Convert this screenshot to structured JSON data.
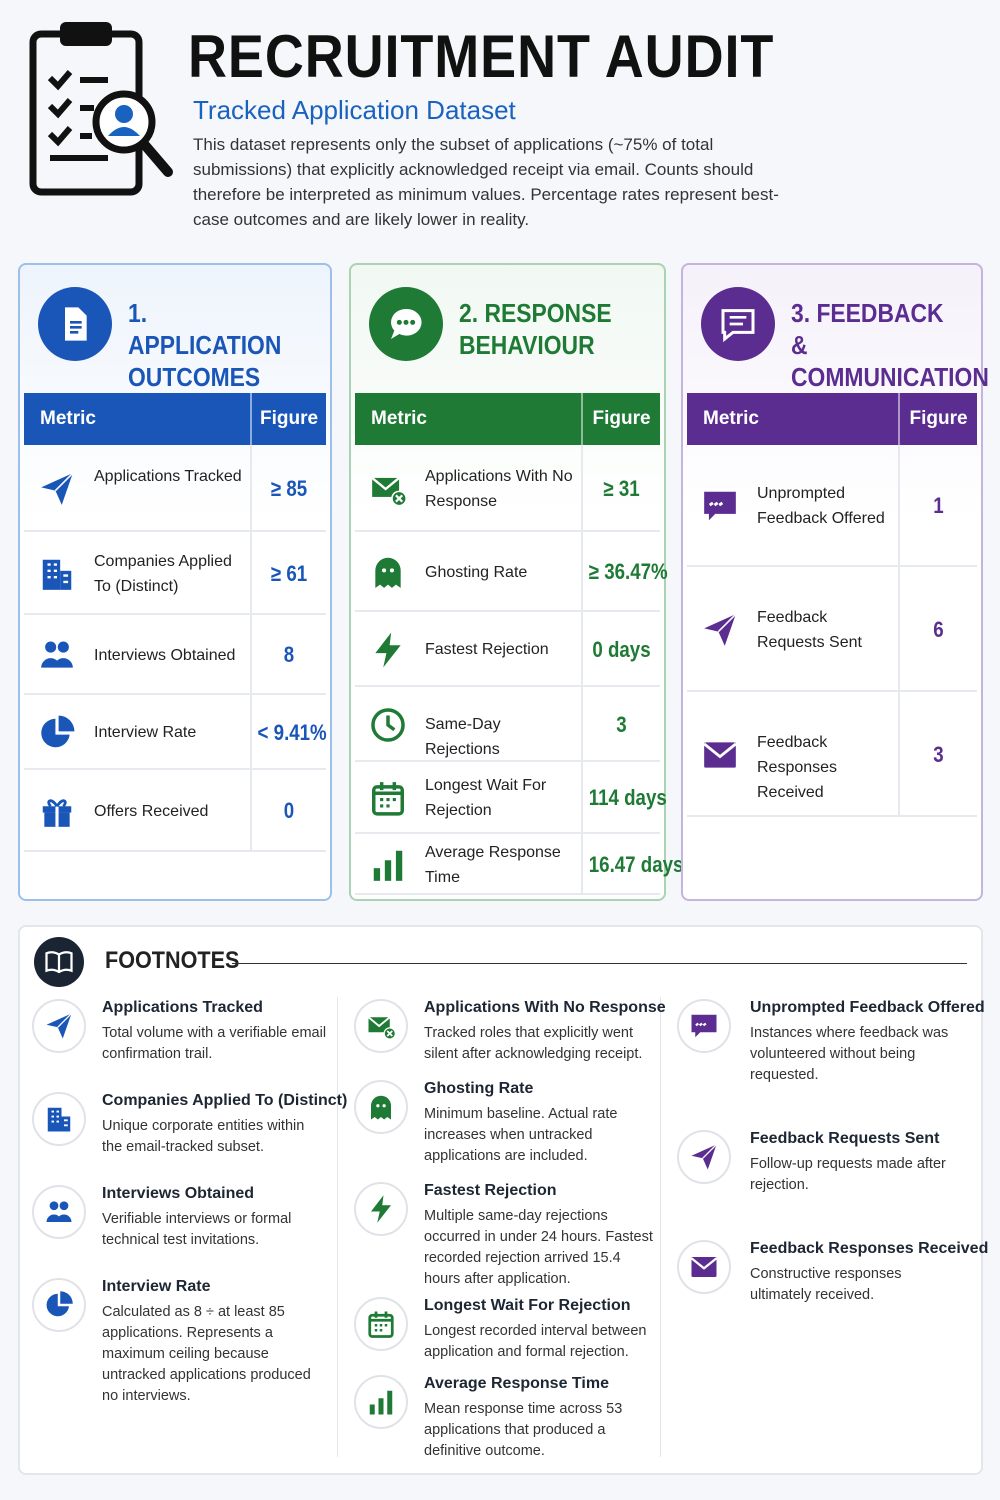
{
  "header": {
    "title": "RECRUITMENT AUDIT",
    "subtitle": "Tracked Application Dataset",
    "description": "This dataset represents only the subset of applications (~75% of total submissions) that explicitly acknowledged receipt via email. Counts should therefore be interpreted as minimum values. Percentage rates represent best-case outcomes and are likely lower in reality."
  },
  "panels": [
    {
      "title": "1. APPLICATION OUTCOMES",
      "columns": [
        "Metric",
        "Figure"
      ],
      "rows": [
        [
          "Applications Tracked",
          "≥ 85"
        ],
        [
          "Companies Applied To (Distinct)",
          "≥ 61"
        ],
        [
          "Interviews Obtained",
          "8"
        ],
        [
          "Interview Rate",
          "< 9.41%"
        ],
        [
          "Offers Received",
          "0"
        ]
      ]
    },
    {
      "title": "2. RESPONSE BEHAVIOUR",
      "columns": [
        "Metric",
        "Figure"
      ],
      "rows": [
        [
          "Applications With No Response",
          "≥ 31"
        ],
        [
          "Ghosting Rate",
          "≥ 36.47%"
        ],
        [
          "Fastest Rejection",
          "0 days"
        ],
        [
          "Same-Day Rejections",
          "3"
        ],
        [
          "Longest Wait For Rejection",
          "114 days"
        ],
        [
          "Average Response Time",
          "16.47 days"
        ]
      ]
    },
    {
      "title": "3. FEEDBACK & COMMUNICATION",
      "columns": [
        "Metric",
        "Figure"
      ],
      "rows": [
        [
          "Unprompted Feedback Offered",
          "1"
        ],
        [
          "Feedback Requests Sent",
          "6"
        ],
        [
          "Feedback Responses Received",
          "3"
        ]
      ]
    }
  ],
  "footnotes": {
    "title": "FOOTNOTES",
    "columns": [
      [
        {
          "title": "Applications Tracked",
          "text": "Total volume with a verifiable email confirmation trail."
        },
        {
          "title": "Companies Applied To (Distinct)",
          "text": "Unique corporate entities within the email-tracked subset."
        },
        {
          "title": "Interviews Obtained",
          "text": "Verifiable interviews or formal technical test invitations."
        },
        {
          "title": "Interview Rate",
          "text": "Calculated as 8 ÷ at least 85 applications. Represents a maximum ceiling because untracked applications produced no interviews."
        }
      ],
      [
        {
          "title": "Applications With No Response",
          "text": "Tracked roles that explicitly went silent after acknowledging receipt."
        },
        {
          "title": "Ghosting Rate",
          "text": "Minimum baseline. Actual rate increases when untracked applications are included."
        },
        {
          "title": "Fastest Rejection",
          "text": "Multiple same-day rejections occurred in under 24 hours. Fastest recorded rejection arrived 15.4 hours after application."
        },
        {
          "title": "Longest Wait For Rejection",
          "text": "Longest recorded interval between application and formal rejection."
        },
        {
          "title": "Average Response Time",
          "text": "Mean response time across 53 applications that produced a definitive outcome."
        }
      ],
      [
        {
          "title": "Unprompted Feedback Offered",
          "text": "Instances where feedback was volunteered without being requested."
        },
        {
          "title": "Feedback Requests Sent",
          "text": "Follow-up requests made after rejection."
        },
        {
          "title": "Feedback Responses Received",
          "text": "Constructive responses ultimately received."
        }
      ]
    ]
  }
}
